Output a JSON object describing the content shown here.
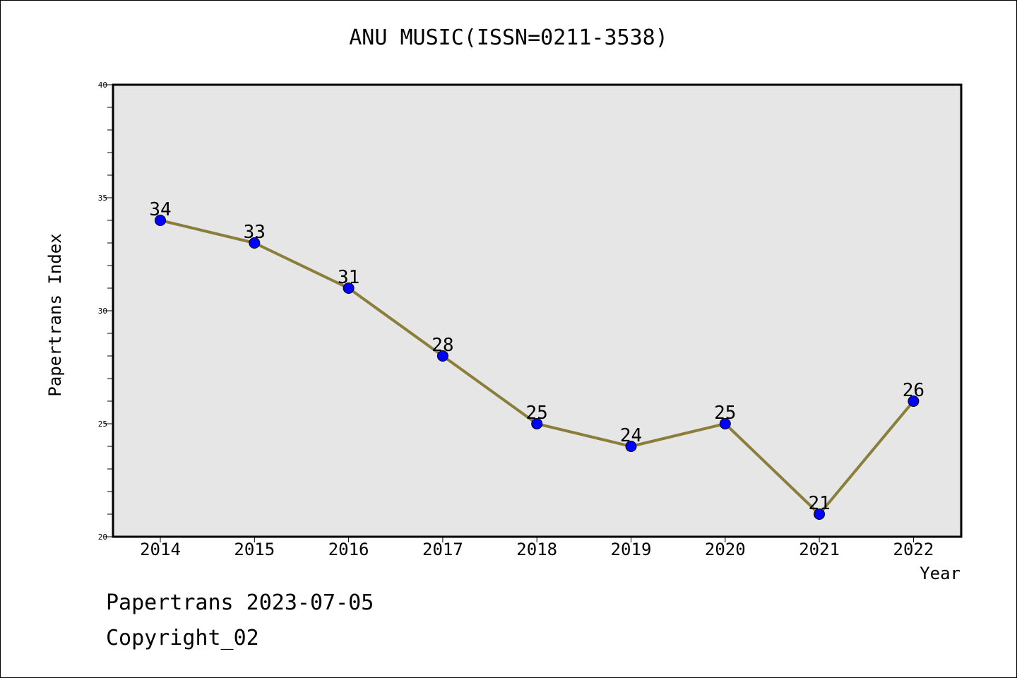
{
  "footer": {
    "date_line": "Papertrans 2023-07-05",
    "copyright_line": "Copyright_02"
  },
  "colors": {
    "plot_background": "#e6e6e6",
    "line": "#8b7d3a",
    "marker": "#0000ff"
  },
  "chart_data": {
    "type": "line",
    "title": "ANU MUSIC(ISSN=0211-3538)",
    "xlabel": "Year",
    "ylabel": "Papertrans Index",
    "x": [
      "2014",
      "2015",
      "2016",
      "2017",
      "2018",
      "2019",
      "2020",
      "2021",
      "2022"
    ],
    "series": [
      {
        "values": [
          34,
          33,
          31,
          28,
          25,
          24,
          25,
          21,
          26
        ]
      }
    ],
    "ylim": [
      20,
      40
    ],
    "yticks": [
      20,
      25,
      30,
      35,
      40
    ],
    "data_labels": true,
    "grid": false
  }
}
